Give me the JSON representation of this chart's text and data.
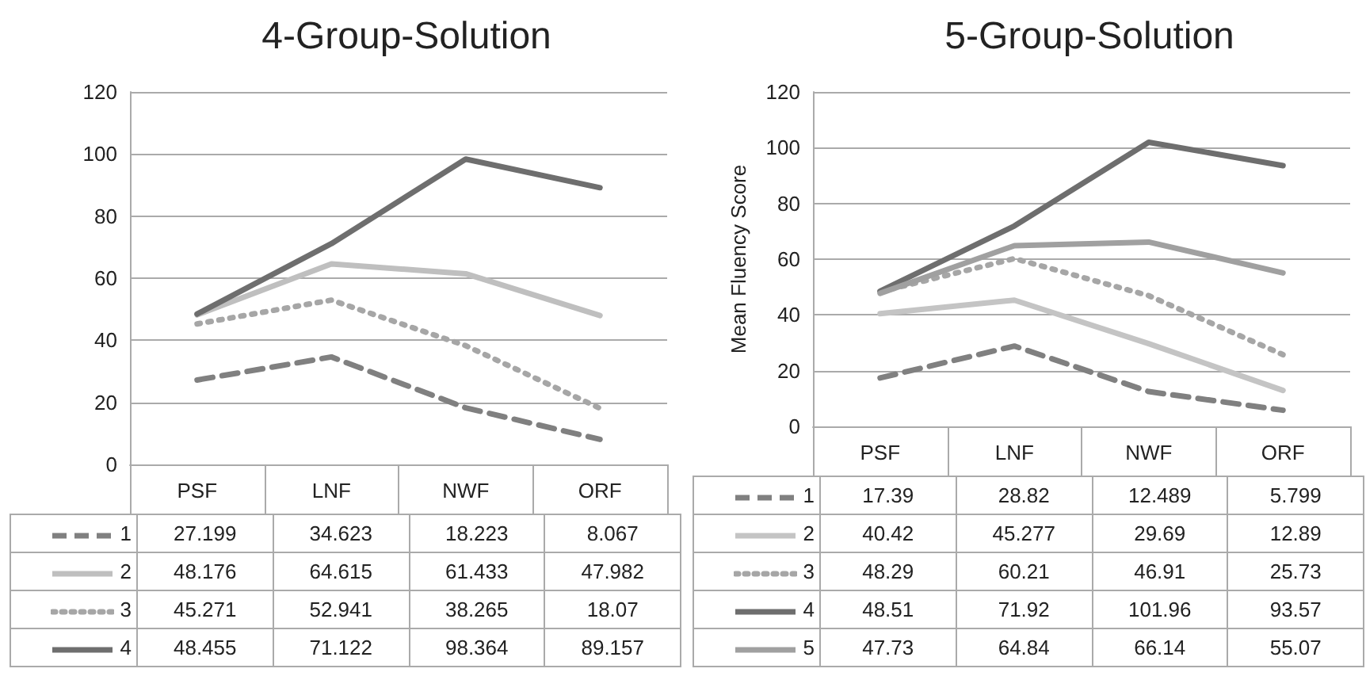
{
  "chart_data": [
    {
      "type": "line",
      "title": "4-Group-Solution",
      "categories": [
        "PSF",
        "LNF",
        "NWF",
        "ORF"
      ],
      "series": [
        {
          "name": "1",
          "color": "#808080",
          "line_style": "dashed",
          "values": [
            27.199,
            34.623,
            18.223,
            8.067
          ]
        },
        {
          "name": "2",
          "color": "#bfbfbf",
          "line_style": "solid",
          "values": [
            48.176,
            64.615,
            61.433,
            47.982
          ]
        },
        {
          "name": "3",
          "color": "#a6a6a6",
          "line_style": "dotted",
          "values": [
            45.271,
            52.941,
            38.265,
            18.07
          ]
        },
        {
          "name": "4",
          "color": "#6e6e6e",
          "line_style": "solid",
          "values": [
            48.455,
            71.122,
            98.364,
            89.157
          ]
        }
      ],
      "ylim": [
        0,
        120
      ],
      "yticks": [
        0,
        20,
        40,
        60,
        80,
        100,
        120
      ],
      "grid": "y",
      "marker": "none",
      "legend": "bottom",
      "data_labels": true
    },
    {
      "type": "line",
      "title": "5-Group-Solution",
      "ylabel": "Mean Fluency Score",
      "categories": [
        "PSF",
        "LNF",
        "NWF",
        "ORF"
      ],
      "series": [
        {
          "name": "1",
          "color": "#808080",
          "line_style": "dashed",
          "values": [
            17.39,
            28.82,
            12.489,
            5.799
          ]
        },
        {
          "name": "2",
          "color": "#c4c4c4",
          "line_style": "solid",
          "values": [
            40.42,
            45.277,
            29.69,
            12.89
          ]
        },
        {
          "name": "3",
          "color": "#a6a6a6",
          "line_style": "dotted",
          "values": [
            48.29,
            60.21,
            46.91,
            25.73
          ]
        },
        {
          "name": "4",
          "color": "#6e6e6e",
          "line_style": "solid",
          "values": [
            48.51,
            71.92,
            101.96,
            93.57
          ]
        },
        {
          "name": "5",
          "color": "#a0a0a0",
          "line_style": "solid",
          "values": [
            47.73,
            64.84,
            66.14,
            55.07
          ]
        }
      ],
      "ylim": [
        0,
        120
      ],
      "yticks": [
        0,
        20,
        40,
        60,
        80,
        100,
        120
      ],
      "grid": "y",
      "marker": "none",
      "legend": "bottom",
      "data_labels": true
    }
  ]
}
